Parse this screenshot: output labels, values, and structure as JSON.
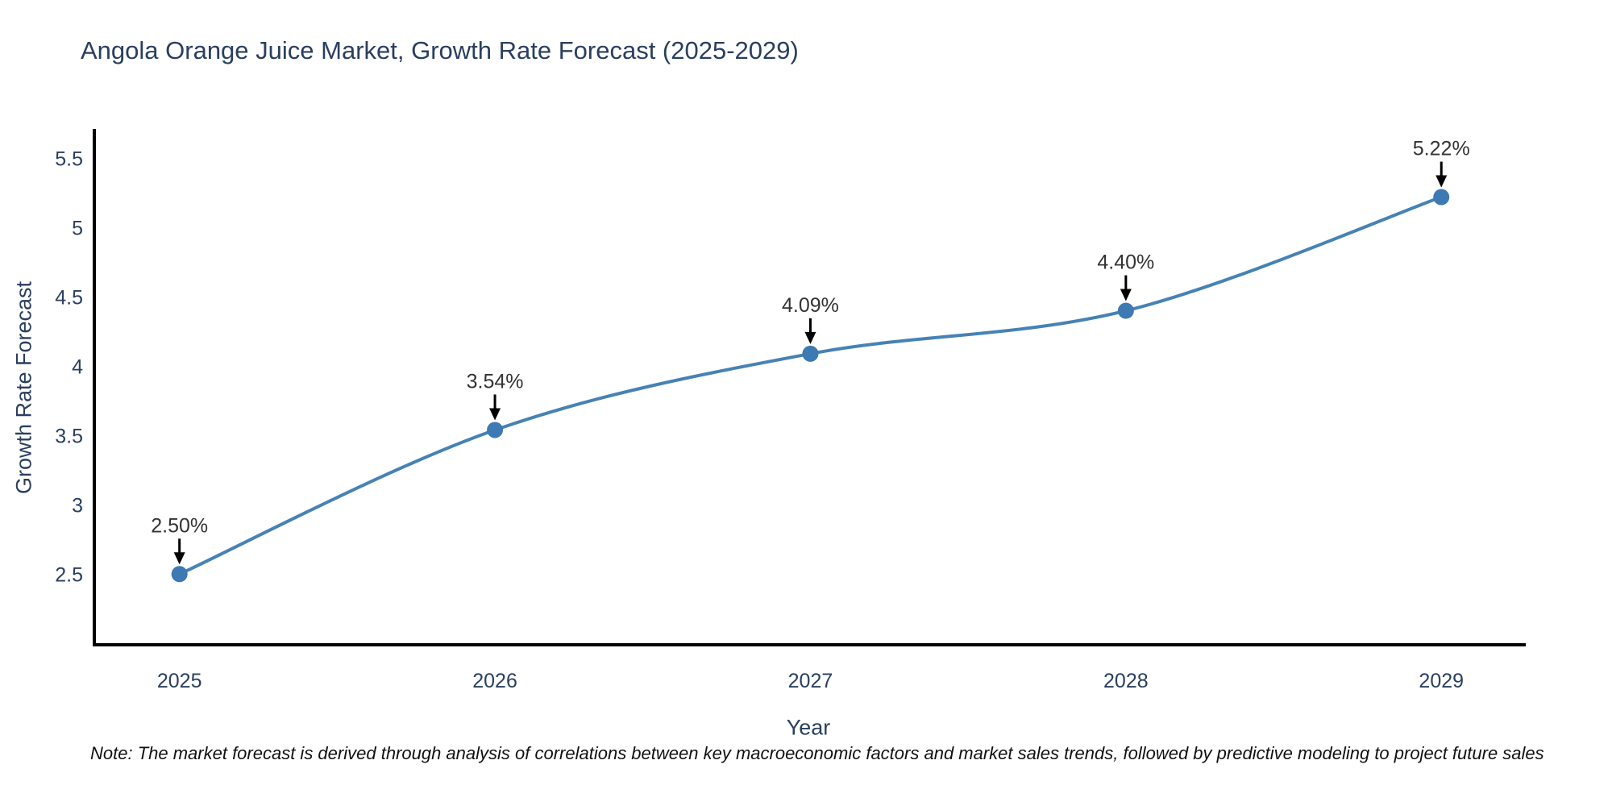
{
  "title": "Angola Orange Juice Market, Growth Rate Forecast (2025-2029)",
  "note": "Note: The market forecast is derived through analysis of correlations between key macroeconomic factors and market sales trends, followed by predictive modeling to project future sales",
  "chart_data": {
    "type": "line",
    "title": "Angola Orange Juice Market, Growth Rate Forecast (2025-2029)",
    "xlabel": "Year",
    "ylabel": "Growth Rate Forecast",
    "categories": [
      2025,
      2026,
      2027,
      2028,
      2029
    ],
    "series": [
      {
        "name": "Growth Rate Forecast",
        "values": [
          2.5,
          3.54,
          4.09,
          4.4,
          5.22
        ],
        "point_labels": [
          "2.50%",
          "3.54%",
          "4.09%",
          "4.40%",
          "5.22%"
        ]
      }
    ],
    "line_shape": "spline",
    "markers": true,
    "grid": false,
    "legend_position": "none",
    "xlim": [
      2024.73,
      2029.26
    ],
    "ylim": [
      1.99,
      5.7
    ],
    "yticks": [
      2.5,
      3,
      3.5,
      4,
      4.5,
      5,
      5.5
    ],
    "ytick_labels": [
      "2.5",
      "3",
      "3.5",
      "4",
      "4.5",
      "5",
      "5.5"
    ],
    "xtick_labels": [
      "2025",
      "2026",
      "2027",
      "2028",
      "2029"
    ],
    "colors": {
      "line": "#4682b4",
      "marker": "#3d79b2",
      "axis": "#000000",
      "tick_text": "#2a3f5f",
      "annotation_text": "#333333",
      "arrow": "#000000",
      "background": "#ffffff"
    }
  }
}
